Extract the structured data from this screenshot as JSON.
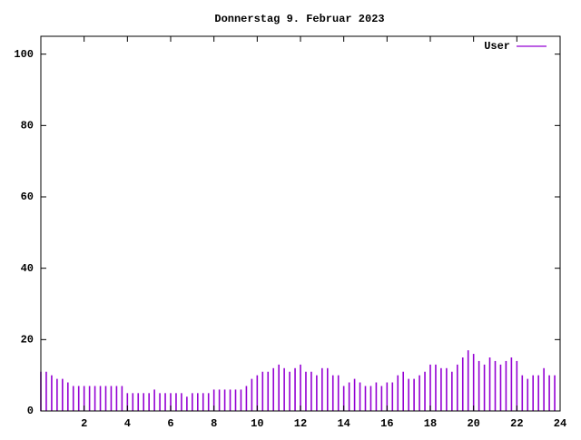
{
  "chart_data": {
    "type": "impulses",
    "title": "Donnerstag 9. Februar 2023",
    "x": [
      0,
      0.25,
      0.5,
      0.75,
      1,
      1.25,
      1.5,
      1.75,
      2,
      2.25,
      2.5,
      2.75,
      3,
      3.25,
      3.5,
      3.75,
      4,
      4.25,
      4.5,
      4.75,
      5,
      5.25,
      5.5,
      5.75,
      6,
      6.25,
      6.5,
      6.75,
      7,
      7.25,
      7.5,
      7.75,
      8,
      8.25,
      8.5,
      8.75,
      9,
      9.25,
      9.5,
      9.75,
      10,
      10.25,
      10.5,
      10.75,
      11,
      11.25,
      11.5,
      11.75,
      12,
      12.25,
      12.5,
      12.75,
      13,
      13.25,
      13.5,
      13.75,
      14,
      14.25,
      14.5,
      14.75,
      15,
      15.25,
      15.5,
      15.75,
      16,
      16.25,
      16.5,
      16.75,
      17,
      17.25,
      17.5,
      17.75,
      18,
      18.25,
      18.5,
      18.75,
      19,
      19.25,
      19.5,
      19.75,
      20,
      20.25,
      20.5,
      20.75,
      21,
      21.25,
      21.5,
      21.75,
      22,
      22.25,
      22.5,
      22.75,
      23,
      23.25,
      23.5,
      23.75
    ],
    "series": [
      {
        "name": "User",
        "color": "#9400d3",
        "values": [
          11,
          11,
          10,
          9,
          9,
          8,
          7,
          7,
          7,
          7,
          7,
          7,
          7,
          7,
          7,
          7,
          5,
          5,
          5,
          5,
          5,
          6,
          5,
          5,
          5,
          5,
          5,
          4,
          5,
          5,
          5,
          5,
          6,
          6,
          6,
          6,
          6,
          6,
          7,
          9,
          10,
          11,
          11,
          12,
          13,
          12,
          11,
          12,
          13,
          11,
          11,
          10,
          12,
          12,
          10,
          10,
          7,
          8,
          9,
          8,
          7,
          7,
          8,
          7,
          8,
          8,
          10,
          11,
          9,
          9,
          10,
          11,
          13,
          13,
          12,
          12,
          11,
          13,
          15,
          17,
          16,
          14,
          13,
          15,
          14,
          13,
          14,
          15,
          14,
          10,
          9,
          10,
          10,
          12,
          10,
          10
        ]
      }
    ],
    "xlim": [
      0,
      24
    ],
    "xticks": [
      2,
      4,
      6,
      8,
      10,
      12,
      14,
      16,
      18,
      20,
      22,
      24
    ],
    "ylim": [
      0,
      105
    ],
    "yticks": [
      0,
      20,
      40,
      60,
      80,
      100
    ],
    "legend": "top-right"
  }
}
